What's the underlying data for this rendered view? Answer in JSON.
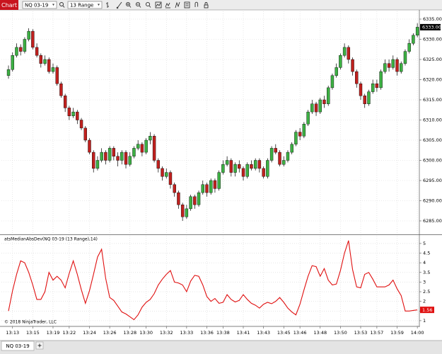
{
  "toolbar": {
    "tab": "Chart",
    "instrument": "NQ 03-19",
    "interval": "13 Range"
  },
  "chart_data": [
    {
      "type": "candlestick",
      "up_color": "#3cb043",
      "down_color": "#c0201e",
      "xlim": [
        -1.75,
        101.5
      ],
      "xticks": [
        {
          "value": 1,
          "label": "13:13"
        },
        {
          "value": 6,
          "label": "13:15"
        },
        {
          "value": 11,
          "label": "13:19"
        },
        {
          "value": 15,
          "label": "13:22"
        },
        {
          "value": 20,
          "label": "13:24"
        },
        {
          "value": 25,
          "label": "13:26"
        },
        {
          "value": 30,
          "label": "13:28"
        },
        {
          "value": 34,
          "label": "13:30"
        },
        {
          "value": 39,
          "label": "13:32"
        },
        {
          "value": 44,
          "label": "13:33"
        },
        {
          "value": 49,
          "label": "13:36"
        },
        {
          "value": 53,
          "label": "13:38"
        },
        {
          "value": 58,
          "label": "13:41"
        },
        {
          "value": 63,
          "label": "13:43"
        },
        {
          "value": 68,
          "label": "13:45"
        },
        {
          "value": 72,
          "label": "13:46"
        },
        {
          "value": 77,
          "label": "13:48"
        },
        {
          "value": 82,
          "label": "13:50"
        },
        {
          "value": 87,
          "label": "13:53"
        },
        {
          "value": 91,
          "label": "13:57"
        },
        {
          "value": 96,
          "label": "13:59"
        },
        {
          "value": 101,
          "label": "14:00"
        }
      ],
      "ylim": [
        6281.84,
        6336.93
      ],
      "yticks": [
        {
          "value": 6285,
          "label": "6285.00"
        },
        {
          "value": 6290,
          "label": "6290.00"
        },
        {
          "value": 6295,
          "label": "6295.00"
        },
        {
          "value": 6300,
          "label": "6300.00"
        },
        {
          "value": 6305,
          "label": "6305.00"
        },
        {
          "value": 6310,
          "label": "6310.00"
        },
        {
          "value": 6315,
          "label": "6315.00"
        },
        {
          "value": 6320,
          "label": "6320.00"
        },
        {
          "value": 6325,
          "label": "6325.00"
        },
        {
          "value": 6330,
          "label": "6330.00"
        },
        {
          "value": 6335,
          "label": "6335.00"
        }
      ],
      "grid": true,
      "open": [
        6321,
        6322.5,
        6326,
        6328,
        6327,
        6330,
        6332,
        6328,
        6326,
        6324,
        6325,
        6322,
        6323,
        6319,
        6316,
        6313,
        6311,
        6312,
        6310,
        6308,
        6305,
        6302,
        6298,
        6300,
        6302,
        6300,
        6303,
        6301,
        6300,
        6302,
        6299,
        6301,
        6303,
        6304,
        6302,
        6305,
        6306,
        6300,
        6298,
        6296,
        6297,
        6294,
        6292,
        6289,
        6286,
        6288,
        6291,
        6289,
        6292,
        6294,
        6292,
        6295,
        6293,
        6297,
        6299,
        6300,
        6297,
        6299,
        6298,
        6296,
        6299,
        6298,
        6300,
        6298,
        6296,
        6300,
        6303,
        6302,
        6299,
        6300,
        6302,
        6304,
        6307,
        6306,
        6309,
        6312,
        6314,
        6312,
        6315,
        6314,
        6318,
        6321,
        6323,
        6326,
        6328,
        6325,
        6322,
        6319,
        6316,
        6314,
        6317,
        6319,
        6318,
        6322,
        6324,
        6323,
        6325,
        6322,
        6324,
        6327,
        6329,
        6331
      ],
      "high": [
        6323.5,
        6326.75,
        6329,
        6328.75,
        6330.5,
        6332.75,
        6332.5,
        6329,
        6326.5,
        6326,
        6325.5,
        6324,
        6323.5,
        6319.5,
        6316.5,
        6313.5,
        6313,
        6312.5,
        6310.5,
        6308.5,
        6305.5,
        6302.5,
        6301,
        6303,
        6302.5,
        6303.5,
        6303.5,
        6302,
        6302.5,
        6302.5,
        6302,
        6303.5,
        6305,
        6304.5,
        6305.5,
        6307,
        6306.5,
        6300.5,
        6298.5,
        6298,
        6297.5,
        6294.5,
        6292.5,
        6289.5,
        6289,
        6291.5,
        6291.5,
        6292.5,
        6295,
        6294.5,
        6295.5,
        6295.5,
        6297.5,
        6300,
        6301,
        6300.5,
        6299.5,
        6300,
        6298.5,
        6299.5,
        6300,
        6300.5,
        6300.5,
        6298.5,
        6300.5,
        6303.5,
        6304,
        6302.5,
        6301,
        6302.5,
        6304.5,
        6307.5,
        6308,
        6309.5,
        6312.5,
        6315,
        6314.5,
        6315.5,
        6316,
        6318.5,
        6321.5,
        6324,
        6326.5,
        6329,
        6328.5,
        6325.5,
        6322.5,
        6319.5,
        6316.5,
        6317.5,
        6320,
        6320,
        6322.5,
        6325,
        6325,
        6326,
        6325.5,
        6324.5,
        6327.5,
        6330,
        6331.5,
        6334
      ],
      "low": [
        6320.25,
        6322,
        6325.5,
        6326,
        6326.5,
        6329.5,
        6327.5,
        6325.5,
        6323,
        6323.5,
        6321.5,
        6321.5,
        6318.5,
        6315.5,
        6312,
        6310,
        6310.5,
        6309,
        6307.5,
        6304.5,
        6301.5,
        6297,
        6297.5,
        6299.5,
        6299,
        6299.5,
        6300,
        6298.5,
        6299,
        6298,
        6298.5,
        6300.5,
        6302.5,
        6301,
        6301.5,
        6304,
        6299.5,
        6297,
        6295,
        6295.5,
        6293,
        6291,
        6288,
        6285,
        6285.5,
        6287.5,
        6288,
        6288.5,
        6291.5,
        6291,
        6291.5,
        6292,
        6292.5,
        6296.5,
        6298.5,
        6296,
        6296,
        6297,
        6295,
        6295.5,
        6297.5,
        6297.5,
        6297,
        6295.5,
        6295.5,
        6299.5,
        6301.5,
        6298.5,
        6298.5,
        6299.5,
        6301.5,
        6303.5,
        6305,
        6305.5,
        6308.5,
        6311.5,
        6311,
        6311.5,
        6313,
        6313.5,
        6317.5,
        6320.5,
        6322.5,
        6325.5,
        6324,
        6321,
        6318,
        6315,
        6313,
        6313.5,
        6316.5,
        6317,
        6317.5,
        6321.5,
        6322,
        6322.5,
        6321,
        6321.5,
        6323.5,
        6326.5,
        6328.5,
        6330.5
      ],
      "close": [
        6322.5,
        6326,
        6328,
        6327,
        6330,
        6332,
        6328,
        6326,
        6324,
        6325,
        6322,
        6323,
        6319,
        6316,
        6313,
        6311,
        6312,
        6310,
        6308,
        6305,
        6302,
        6298,
        6300,
        6302,
        6300,
        6303,
        6301,
        6300,
        6302,
        6299,
        6301,
        6303,
        6304,
        6302,
        6305,
        6306,
        6300,
        6298,
        6296,
        6297,
        6294,
        6292,
        6289,
        6286,
        6288,
        6291,
        6289,
        6292,
        6294,
        6292,
        6295,
        6293,
        6297,
        6299,
        6300,
        6297,
        6299,
        6298,
        6296,
        6299,
        6298,
        6300,
        6298,
        6296,
        6300,
        6303,
        6302,
        6299,
        6300,
        6302,
        6304,
        6307,
        6306,
        6309,
        6312,
        6314,
        6312,
        6315,
        6314,
        6318,
        6321,
        6323,
        6326,
        6328,
        6325,
        6322,
        6319,
        6316,
        6314,
        6317,
        6319,
        6318,
        6322,
        6324,
        6323,
        6325,
        6322,
        6324,
        6327,
        6329,
        6331,
        6333
      ],
      "last_value_label": "6333.00",
      "last_label_color": "#000000"
    },
    {
      "type": "line",
      "title": "atsMedianAbsDev(NQ 03-19 (13 Range),14)",
      "color": "#e01010",
      "ylim": [
        0.74,
        5.4
      ],
      "yticks": [
        1,
        1.5,
        2,
        2.5,
        3,
        3.5,
        4,
        4.5,
        5
      ],
      "grid": true,
      "values": [
        1.5,
        2.55,
        3.4,
        4.1,
        4.0,
        3.5,
        2.85,
        2.1,
        2.1,
        2.5,
        3.5,
        3.1,
        3.3,
        3.1,
        2.7,
        3.45,
        4.1,
        3.4,
        2.6,
        1.9,
        2.55,
        3.4,
        4.3,
        4.7,
        3.2,
        2.2,
        2.05,
        1.75,
        1.45,
        1.35,
        1.2,
        1.05,
        1.3,
        1.7,
        1.95,
        2.1,
        2.4,
        2.85,
        3.15,
        3.4,
        3.6,
        3.0,
        2.95,
        2.85,
        2.5,
        3.05,
        3.35,
        3.3,
        2.85,
        2.25,
        2.0,
        2.15,
        1.9,
        1.95,
        2.35,
        2.1,
        1.97,
        2.05,
        2.35,
        2.1,
        1.9,
        1.8,
        1.65,
        1.85,
        1.95,
        1.88,
        2.0,
        2.2,
        1.95,
        1.65,
        1.45,
        1.3,
        1.85,
        2.6,
        3.3,
        3.85,
        3.8,
        3.3,
        3.7,
        3.1,
        2.85,
        2.9,
        3.6,
        4.5,
        5.15,
        3.65,
        2.75,
        2.7,
        3.4,
        3.5,
        3.15,
        2.75,
        2.75,
        2.75,
        2.85,
        3.1,
        2.65,
        2.3,
        1.5,
        1.5,
        1.53,
        1.56
      ],
      "last_value_label": "1.56"
    }
  ],
  "copyright": "© 2018 NinjaTrader, LLC",
  "tabs": [
    "NQ 03-19"
  ]
}
